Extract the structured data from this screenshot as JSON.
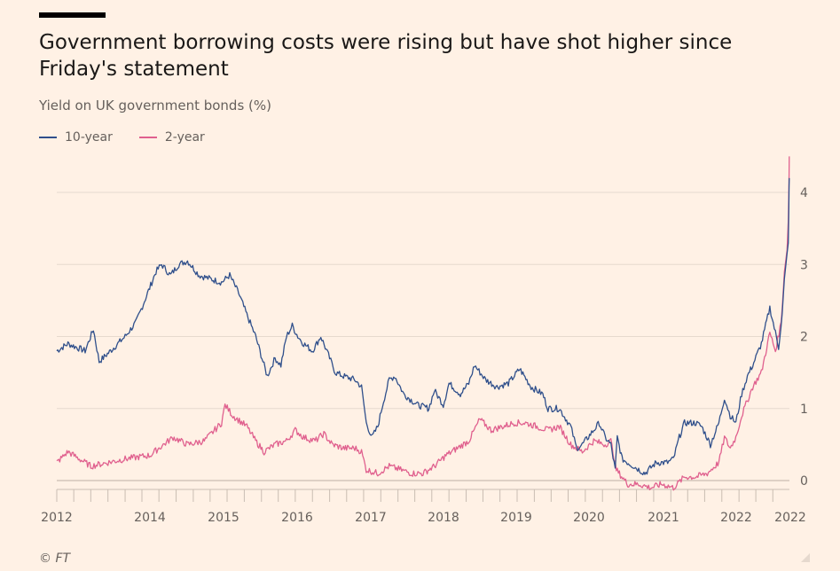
{
  "title": "Government borrowing costs were rising but have shot higher since Friday's statement",
  "subtitle": "Yield on UK government bonds (%)",
  "footer": "© FT",
  "colors": {
    "background": "#fff1e5",
    "ten_year": "#2f4f8b",
    "two_year": "#e0608e",
    "grid": "#e6d9ce",
    "tick": "#66605c"
  },
  "chart_data": {
    "type": "line",
    "title": "Government borrowing costs were rising but have shot higher since Friday's statement",
    "ylabel": "Yield on UK government bonds (%)",
    "xlabel": "",
    "ylim": [
      -0.1,
      4.5
    ],
    "xlim": [
      "2012-01-01",
      "2022-09-28"
    ],
    "y_ticks": [
      0,
      1,
      2,
      3,
      4
    ],
    "x_tick_labels": [
      "2012",
      "2014",
      "2015",
      "2016",
      "2017",
      "2018",
      "2019",
      "2020",
      "2021",
      "2022",
      "2022"
    ],
    "grid": "horizontal",
    "legend_position": "top-left",
    "series": [
      {
        "name": "10-year",
        "color": "#2f4f8b",
        "points": [
          [
            "2012-01-01",
            1.8
          ],
          [
            "2012-03-01",
            1.9
          ],
          [
            "2012-06-01",
            1.8
          ],
          [
            "2012-07-15",
            2.1
          ],
          [
            "2012-08-15",
            1.65
          ],
          [
            "2012-10-15",
            1.8
          ],
          [
            "2013-01-01",
            2.0
          ],
          [
            "2013-03-01",
            2.2
          ],
          [
            "2013-05-01",
            2.6
          ],
          [
            "2013-06-15",
            2.9
          ],
          [
            "2013-07-15",
            3.0
          ],
          [
            "2013-09-01",
            2.85
          ],
          [
            "2013-10-15",
            3.0
          ],
          [
            "2013-12-01",
            3.05
          ],
          [
            "2014-02-01",
            2.85
          ],
          [
            "2014-04-01",
            2.8
          ],
          [
            "2014-06-01",
            2.75
          ],
          [
            "2014-07-15",
            2.85
          ],
          [
            "2014-09-01",
            2.6
          ],
          [
            "2014-10-15",
            2.3
          ],
          [
            "2014-12-01",
            2.0
          ],
          [
            "2015-01-15",
            1.6
          ],
          [
            "2015-02-01",
            1.45
          ],
          [
            "2015-03-15",
            1.7
          ],
          [
            "2015-04-15",
            1.6
          ],
          [
            "2015-05-15",
            2.0
          ],
          [
            "2015-06-15",
            2.15
          ],
          [
            "2015-07-15",
            2.0
          ],
          [
            "2015-08-15",
            1.9
          ],
          [
            "2015-10-01",
            1.8
          ],
          [
            "2015-11-15",
            2.0
          ],
          [
            "2016-01-01",
            1.7
          ],
          [
            "2016-02-01",
            1.5
          ],
          [
            "2016-03-15",
            1.45
          ],
          [
            "2016-05-15",
            1.4
          ],
          [
            "2016-06-20",
            1.3
          ],
          [
            "2016-07-15",
            0.8
          ],
          [
            "2016-08-15",
            0.6
          ],
          [
            "2016-09-15",
            0.75
          ],
          [
            "2016-10-15",
            1.1
          ],
          [
            "2016-11-15",
            1.4
          ],
          [
            "2016-12-15",
            1.45
          ],
          [
            "2017-02-01",
            1.2
          ],
          [
            "2017-04-15",
            1.05
          ],
          [
            "2017-06-15",
            1.0
          ],
          [
            "2017-07-15",
            1.25
          ],
          [
            "2017-09-01",
            1.05
          ],
          [
            "2017-10-01",
            1.35
          ],
          [
            "2017-12-01",
            1.2
          ],
          [
            "2018-01-15",
            1.35
          ],
          [
            "2018-02-15",
            1.6
          ],
          [
            "2018-04-15",
            1.4
          ],
          [
            "2018-06-15",
            1.3
          ],
          [
            "2018-08-15",
            1.35
          ],
          [
            "2018-10-15",
            1.55
          ],
          [
            "2018-12-15",
            1.3
          ],
          [
            "2019-02-15",
            1.2
          ],
          [
            "2019-03-15",
            1.0
          ],
          [
            "2019-05-15",
            1.0
          ],
          [
            "2019-07-15",
            0.75
          ],
          [
            "2019-08-15",
            0.45
          ],
          [
            "2019-09-15",
            0.5
          ],
          [
            "2019-11-15",
            0.7
          ],
          [
            "2019-12-15",
            0.8
          ],
          [
            "2020-01-15",
            0.6
          ],
          [
            "2020-02-15",
            0.5
          ],
          [
            "2020-03-09",
            0.15
          ],
          [
            "2020-03-20",
            0.6
          ],
          [
            "2020-04-15",
            0.3
          ],
          [
            "2020-06-15",
            0.2
          ],
          [
            "2020-08-15",
            0.1
          ],
          [
            "2020-10-15",
            0.25
          ],
          [
            "2020-12-15",
            0.25
          ],
          [
            "2021-01-15",
            0.3
          ],
          [
            "2021-02-15",
            0.6
          ],
          [
            "2021-03-15",
            0.8
          ],
          [
            "2021-05-15",
            0.8
          ],
          [
            "2021-06-15",
            0.75
          ],
          [
            "2021-08-01",
            0.5
          ],
          [
            "2021-09-15",
            0.8
          ],
          [
            "2021-10-15",
            1.15
          ],
          [
            "2021-11-15",
            0.9
          ],
          [
            "2021-12-15",
            0.8
          ],
          [
            "2022-01-15",
            1.2
          ],
          [
            "2022-02-15",
            1.45
          ],
          [
            "2022-03-15",
            1.6
          ],
          [
            "2022-05-01",
            1.9
          ],
          [
            "2022-06-15",
            2.4
          ],
          [
            "2022-07-15",
            2.05
          ],
          [
            "2022-08-01",
            1.85
          ],
          [
            "2022-08-20",
            2.3
          ],
          [
            "2022-09-01",
            2.8
          ],
          [
            "2022-09-15",
            3.15
          ],
          [
            "2022-09-22",
            3.3
          ],
          [
            "2022-09-26",
            4.1
          ],
          [
            "2022-09-27",
            4.2
          ]
        ]
      },
      {
        "name": "2-year",
        "color": "#e0608e",
        "points": [
          [
            "2012-01-01",
            0.25
          ],
          [
            "2012-03-01",
            0.4
          ],
          [
            "2012-05-01",
            0.3
          ],
          [
            "2012-07-01",
            0.2
          ],
          [
            "2012-10-01",
            0.25
          ],
          [
            "2013-01-01",
            0.3
          ],
          [
            "2013-05-15",
            0.35
          ],
          [
            "2013-07-01",
            0.45
          ],
          [
            "2013-09-15",
            0.6
          ],
          [
            "2013-12-01",
            0.5
          ],
          [
            "2014-03-01",
            0.55
          ],
          [
            "2014-06-01",
            0.8
          ],
          [
            "2014-06-20",
            1.05
          ],
          [
            "2014-08-01",
            0.9
          ],
          [
            "2014-10-15",
            0.75
          ],
          [
            "2014-12-01",
            0.55
          ],
          [
            "2015-01-15",
            0.4
          ],
          [
            "2015-03-15",
            0.5
          ],
          [
            "2015-05-15",
            0.55
          ],
          [
            "2015-07-01",
            0.7
          ],
          [
            "2015-08-15",
            0.6
          ],
          [
            "2015-10-15",
            0.55
          ],
          [
            "2015-12-01",
            0.65
          ],
          [
            "2016-01-15",
            0.5
          ],
          [
            "2016-03-15",
            0.45
          ],
          [
            "2016-05-15",
            0.45
          ],
          [
            "2016-06-20",
            0.4
          ],
          [
            "2016-07-15",
            0.15
          ],
          [
            "2016-09-15",
            0.1
          ],
          [
            "2016-11-15",
            0.2
          ],
          [
            "2017-01-15",
            0.15
          ],
          [
            "2017-03-15",
            0.1
          ],
          [
            "2017-05-15",
            0.1
          ],
          [
            "2017-07-15",
            0.2
          ],
          [
            "2017-09-15",
            0.35
          ],
          [
            "2017-11-15",
            0.45
          ],
          [
            "2018-01-15",
            0.55
          ],
          [
            "2018-03-15",
            0.85
          ],
          [
            "2018-05-15",
            0.7
          ],
          [
            "2018-07-15",
            0.75
          ],
          [
            "2018-09-15",
            0.8
          ],
          [
            "2018-11-15",
            0.8
          ],
          [
            "2019-01-15",
            0.75
          ],
          [
            "2019-03-15",
            0.7
          ],
          [
            "2019-05-15",
            0.75
          ],
          [
            "2019-07-15",
            0.5
          ],
          [
            "2019-09-15",
            0.4
          ],
          [
            "2019-11-15",
            0.55
          ],
          [
            "2020-01-15",
            0.5
          ],
          [
            "2020-02-15",
            0.55
          ],
          [
            "2020-03-15",
            0.15
          ],
          [
            "2020-05-15",
            -0.05
          ],
          [
            "2020-07-15",
            -0.05
          ],
          [
            "2020-09-15",
            -0.1
          ],
          [
            "2020-11-15",
            -0.05
          ],
          [
            "2021-01-15",
            -0.1
          ],
          [
            "2021-03-15",
            0.05
          ],
          [
            "2021-05-15",
            0.05
          ],
          [
            "2021-07-15",
            0.1
          ],
          [
            "2021-09-15",
            0.25
          ],
          [
            "2021-10-15",
            0.6
          ],
          [
            "2021-11-15",
            0.45
          ],
          [
            "2021-12-15",
            0.6
          ],
          [
            "2022-01-15",
            0.9
          ],
          [
            "2022-03-15",
            1.3
          ],
          [
            "2022-05-01",
            1.5
          ],
          [
            "2022-06-15",
            2.05
          ],
          [
            "2022-07-15",
            1.8
          ],
          [
            "2022-08-15",
            2.2
          ],
          [
            "2022-09-01",
            2.9
          ],
          [
            "2022-09-15",
            3.2
          ],
          [
            "2022-09-22",
            3.6
          ],
          [
            "2022-09-26",
            4.25
          ],
          [
            "2022-09-27",
            4.5
          ]
        ]
      }
    ]
  }
}
